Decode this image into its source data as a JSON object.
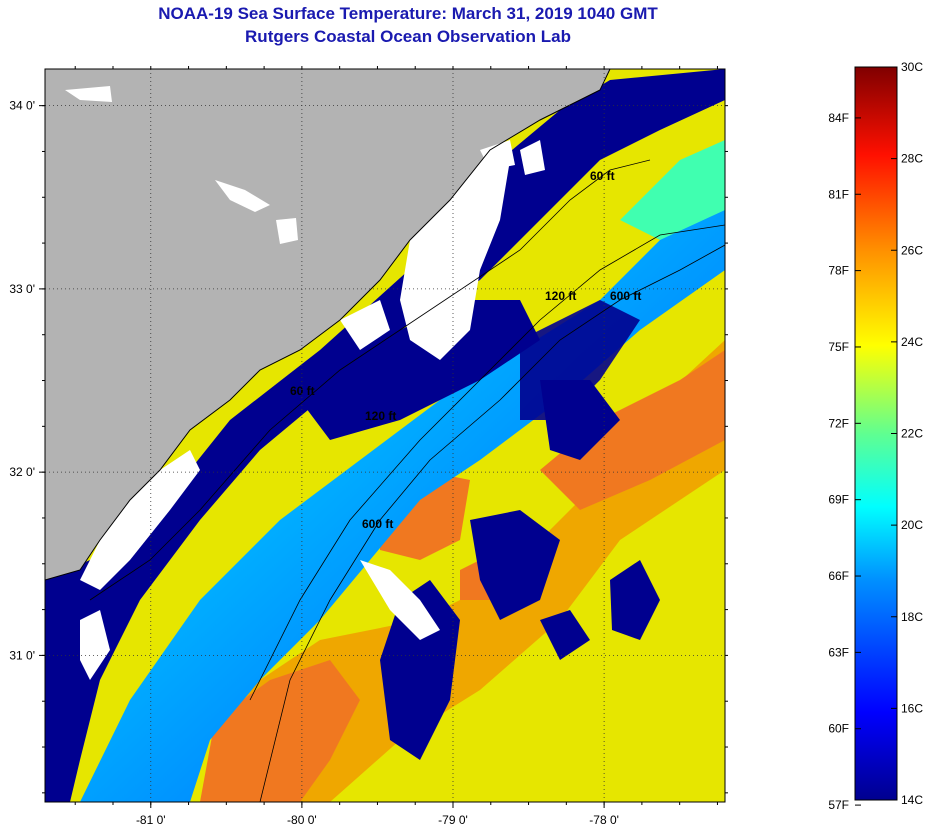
{
  "title": "NOAA-19 Sea Surface Temperature:  March 31, 2019 1040 GMT",
  "subtitle": "Rutgers Coastal Ocean Observation Lab",
  "map": {
    "lat_labels": [
      {
        "value": 34,
        "label": "34 0'"
      },
      {
        "value": 33,
        "label": "33 0'"
      },
      {
        "value": 32,
        "label": "32 0'"
      },
      {
        "value": 31,
        "label": "31 0'"
      }
    ],
    "lon_labels": [
      {
        "value": -81,
        "label": "-81 0'"
      },
      {
        "value": -80,
        "label": "-80 0'"
      },
      {
        "value": -79,
        "label": "-79 0'"
      },
      {
        "value": -78,
        "label": "-78 0'"
      }
    ],
    "lon_range": [
      -81.7,
      -77.2
    ],
    "lat_range": [
      30.2,
      34.2
    ],
    "contour_labels": [
      "60 ft",
      "120 ft",
      "600 ft",
      "60 ft",
      "120 ft",
      "600 ft"
    ],
    "colors": {
      "land": "#b3b3b3",
      "cloud": "#ffffff",
      "cold": "#00008f",
      "warm": "#f07820",
      "mid": "#e6e600"
    }
  },
  "colorbar": {
    "min_c": 14,
    "max_c": 30,
    "celsius_labels": [
      "30C",
      "28C",
      "26C",
      "24C",
      "22C",
      "20C",
      "18C",
      "16C",
      "14C"
    ],
    "fahrenheit_labels": [
      "84F",
      "81F",
      "78F",
      "75F",
      "72F",
      "69F",
      "66F",
      "63F",
      "60F",
      "57F"
    ]
  }
}
